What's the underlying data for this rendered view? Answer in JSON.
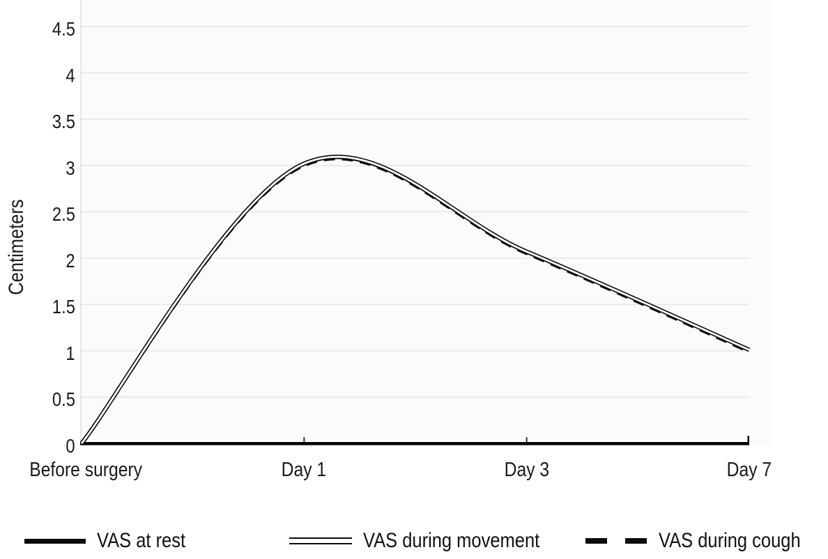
{
  "chart_data": {
    "type": "line",
    "title": "",
    "xlabel": "",
    "ylabel": "Centimeters",
    "categories": [
      "Before surgery",
      "Day 1",
      "Day 3",
      "Day 7"
    ],
    "yticks": [
      0,
      0.5,
      1,
      1.5,
      2,
      2.5,
      3,
      3.5,
      4,
      4.5
    ],
    "ylim": [
      0,
      4.8
    ],
    "grid": true,
    "legend_position": "bottom",
    "line_smoothing": "smooth",
    "series": [
      {
        "name": "VAS at rest",
        "style": "solid-thick",
        "values": [
          0,
          3.0,
          2.05,
          1.0
        ]
      },
      {
        "name": "VAS during movement",
        "style": "double-line",
        "values": [
          0,
          3.02,
          2.07,
          1.01
        ]
      },
      {
        "name": "VAS during cough",
        "style": "dashed",
        "values": [
          0,
          3.01,
          2.06,
          1.0
        ]
      }
    ],
    "colors": {
      "line": "#0a0a0a",
      "grid": "#e6e6e6",
      "axis_spine": "#e0e0e0",
      "axis_line": "#000000",
      "plot_background": "#fbfbfb",
      "text": "#1a1a1a"
    }
  }
}
